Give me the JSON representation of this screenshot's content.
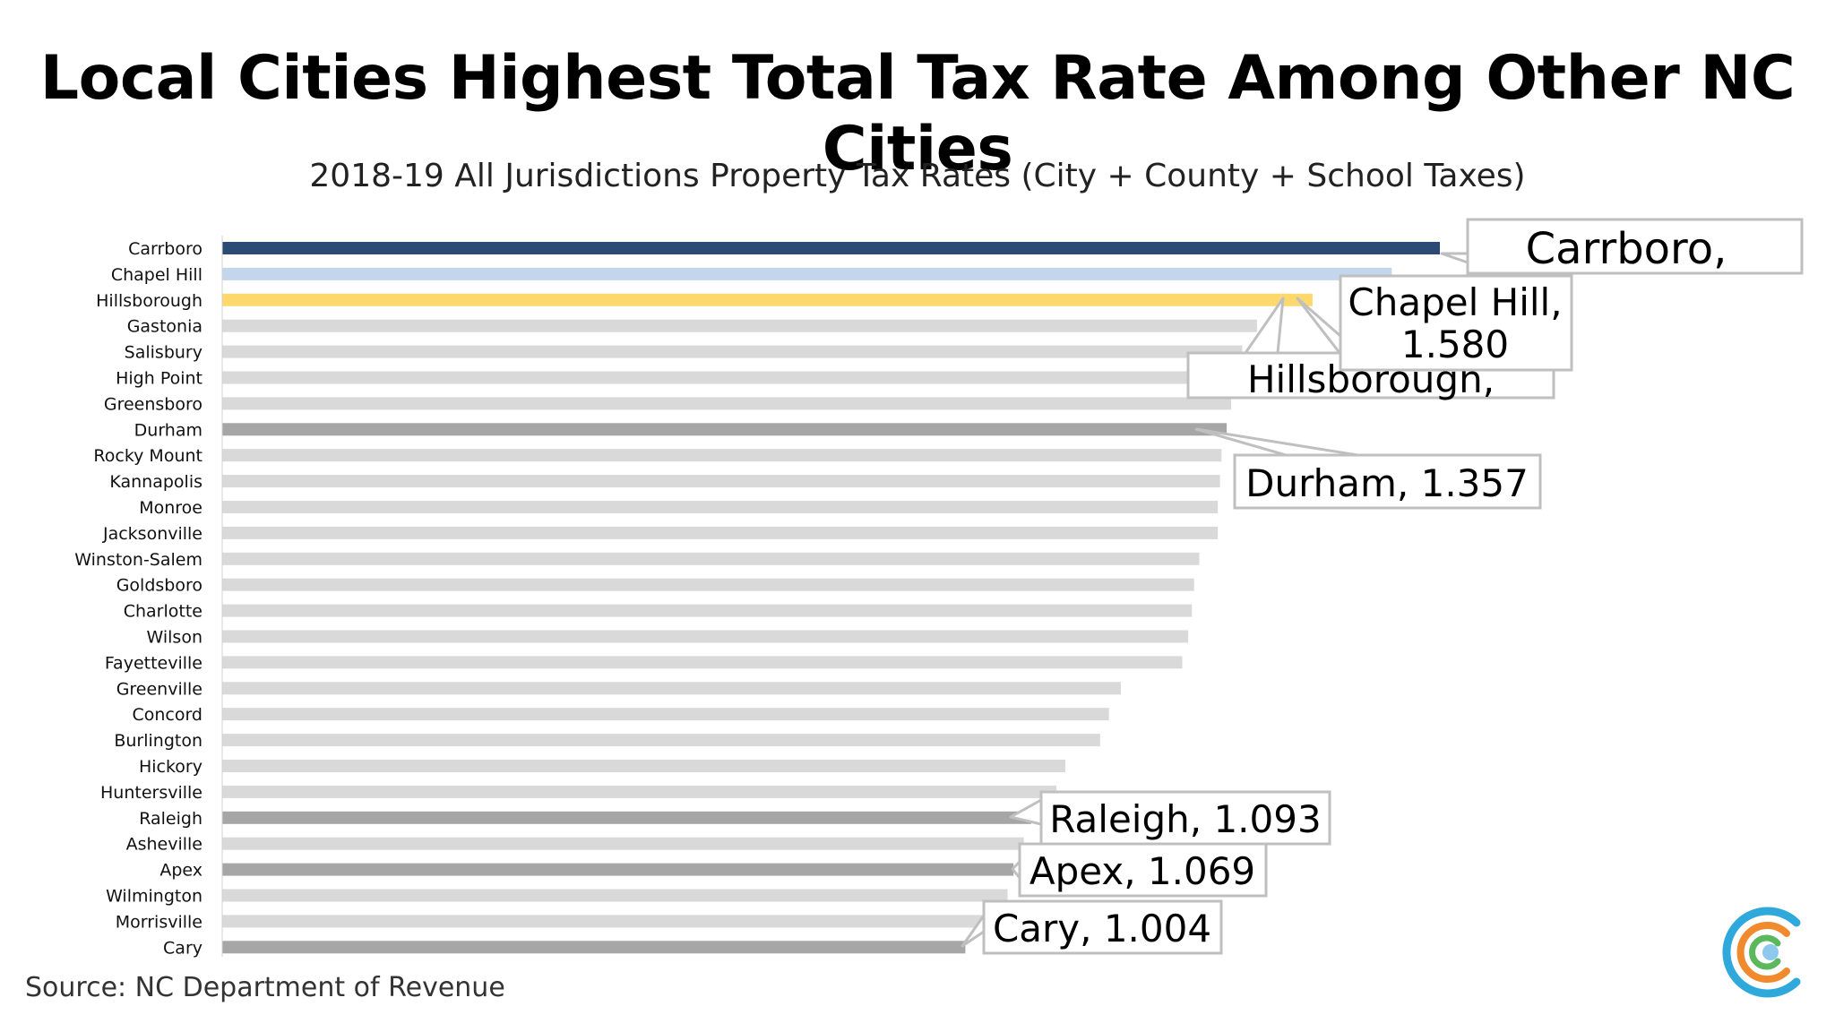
{
  "page": {
    "title": "Local Cities Highest Total Tax Rate Among Other NC Cities",
    "subtitle": "2018-19 All Jurisdictions Property Tax Rates (City + County + School Taxes)",
    "source": "Source: NC Department of Revenue",
    "logo_icon": "concentric-c-logo-icon"
  },
  "chart_data": {
    "type": "bar",
    "orientation": "horizontal",
    "title": "2018-19 All Jurisdictions Property Tax Rates (City + County + School Taxes)",
    "xlabel": "",
    "ylabel": "",
    "xlim": [
      0,
      1.68
    ],
    "grid": false,
    "categories": [
      "Carrboro",
      "Chapel Hill",
      "Hillsborough",
      "Gastonia",
      "Salisbury",
      "High Point",
      "Greensboro",
      "Durham",
      "Rocky Mount",
      "Kannapolis",
      "Monroe",
      "Jacksonville",
      "Winston-Salem",
      "Goldsboro",
      "Charlotte",
      "Wilson",
      "Fayetteville",
      "Greenville",
      "Concord",
      "Burlington",
      "Hickory",
      "Huntersville",
      "Raleigh",
      "Asheville",
      "Apex",
      "Wilmington",
      "Morrisville",
      "Cary"
    ],
    "values": [
      1.645,
      1.58,
      1.473,
      1.398,
      1.378,
      1.37,
      1.363,
      1.357,
      1.35,
      1.348,
      1.345,
      1.345,
      1.32,
      1.313,
      1.31,
      1.305,
      1.297,
      1.214,
      1.198,
      1.186,
      1.139,
      1.127,
      1.093,
      1.083,
      1.069,
      1.061,
      1.032,
      1.004
    ],
    "colors": {
      "Carrboro": "#2b4b74",
      "Chapel Hill": "#c3d6ec",
      "Hillsborough": "#fdd86d",
      "Durham": "#a6a6a6",
      "Raleigh": "#a6a6a6",
      "Apex": "#a6a6a6",
      "Cary": "#a6a6a6",
      "default": "#d9d9d9"
    },
    "annotations": [
      {
        "city": "Carrboro",
        "text": [
          "Carrboro,"
        ]
      },
      {
        "city": "Chapel Hill",
        "text": [
          "Chapel Hill,",
          "1.580"
        ]
      },
      {
        "city": "Hillsborough",
        "text": [
          "Hillsborough,"
        ]
      },
      {
        "city": "Durham",
        "text": [
          "Durham, 1.357"
        ]
      },
      {
        "city": "Raleigh",
        "text": [
          "Raleigh, 1.093"
        ]
      },
      {
        "city": "Apex",
        "text": [
          "Apex, 1.069"
        ]
      },
      {
        "city": "Cary",
        "text": [
          "Cary, 1.004"
        ]
      }
    ]
  }
}
